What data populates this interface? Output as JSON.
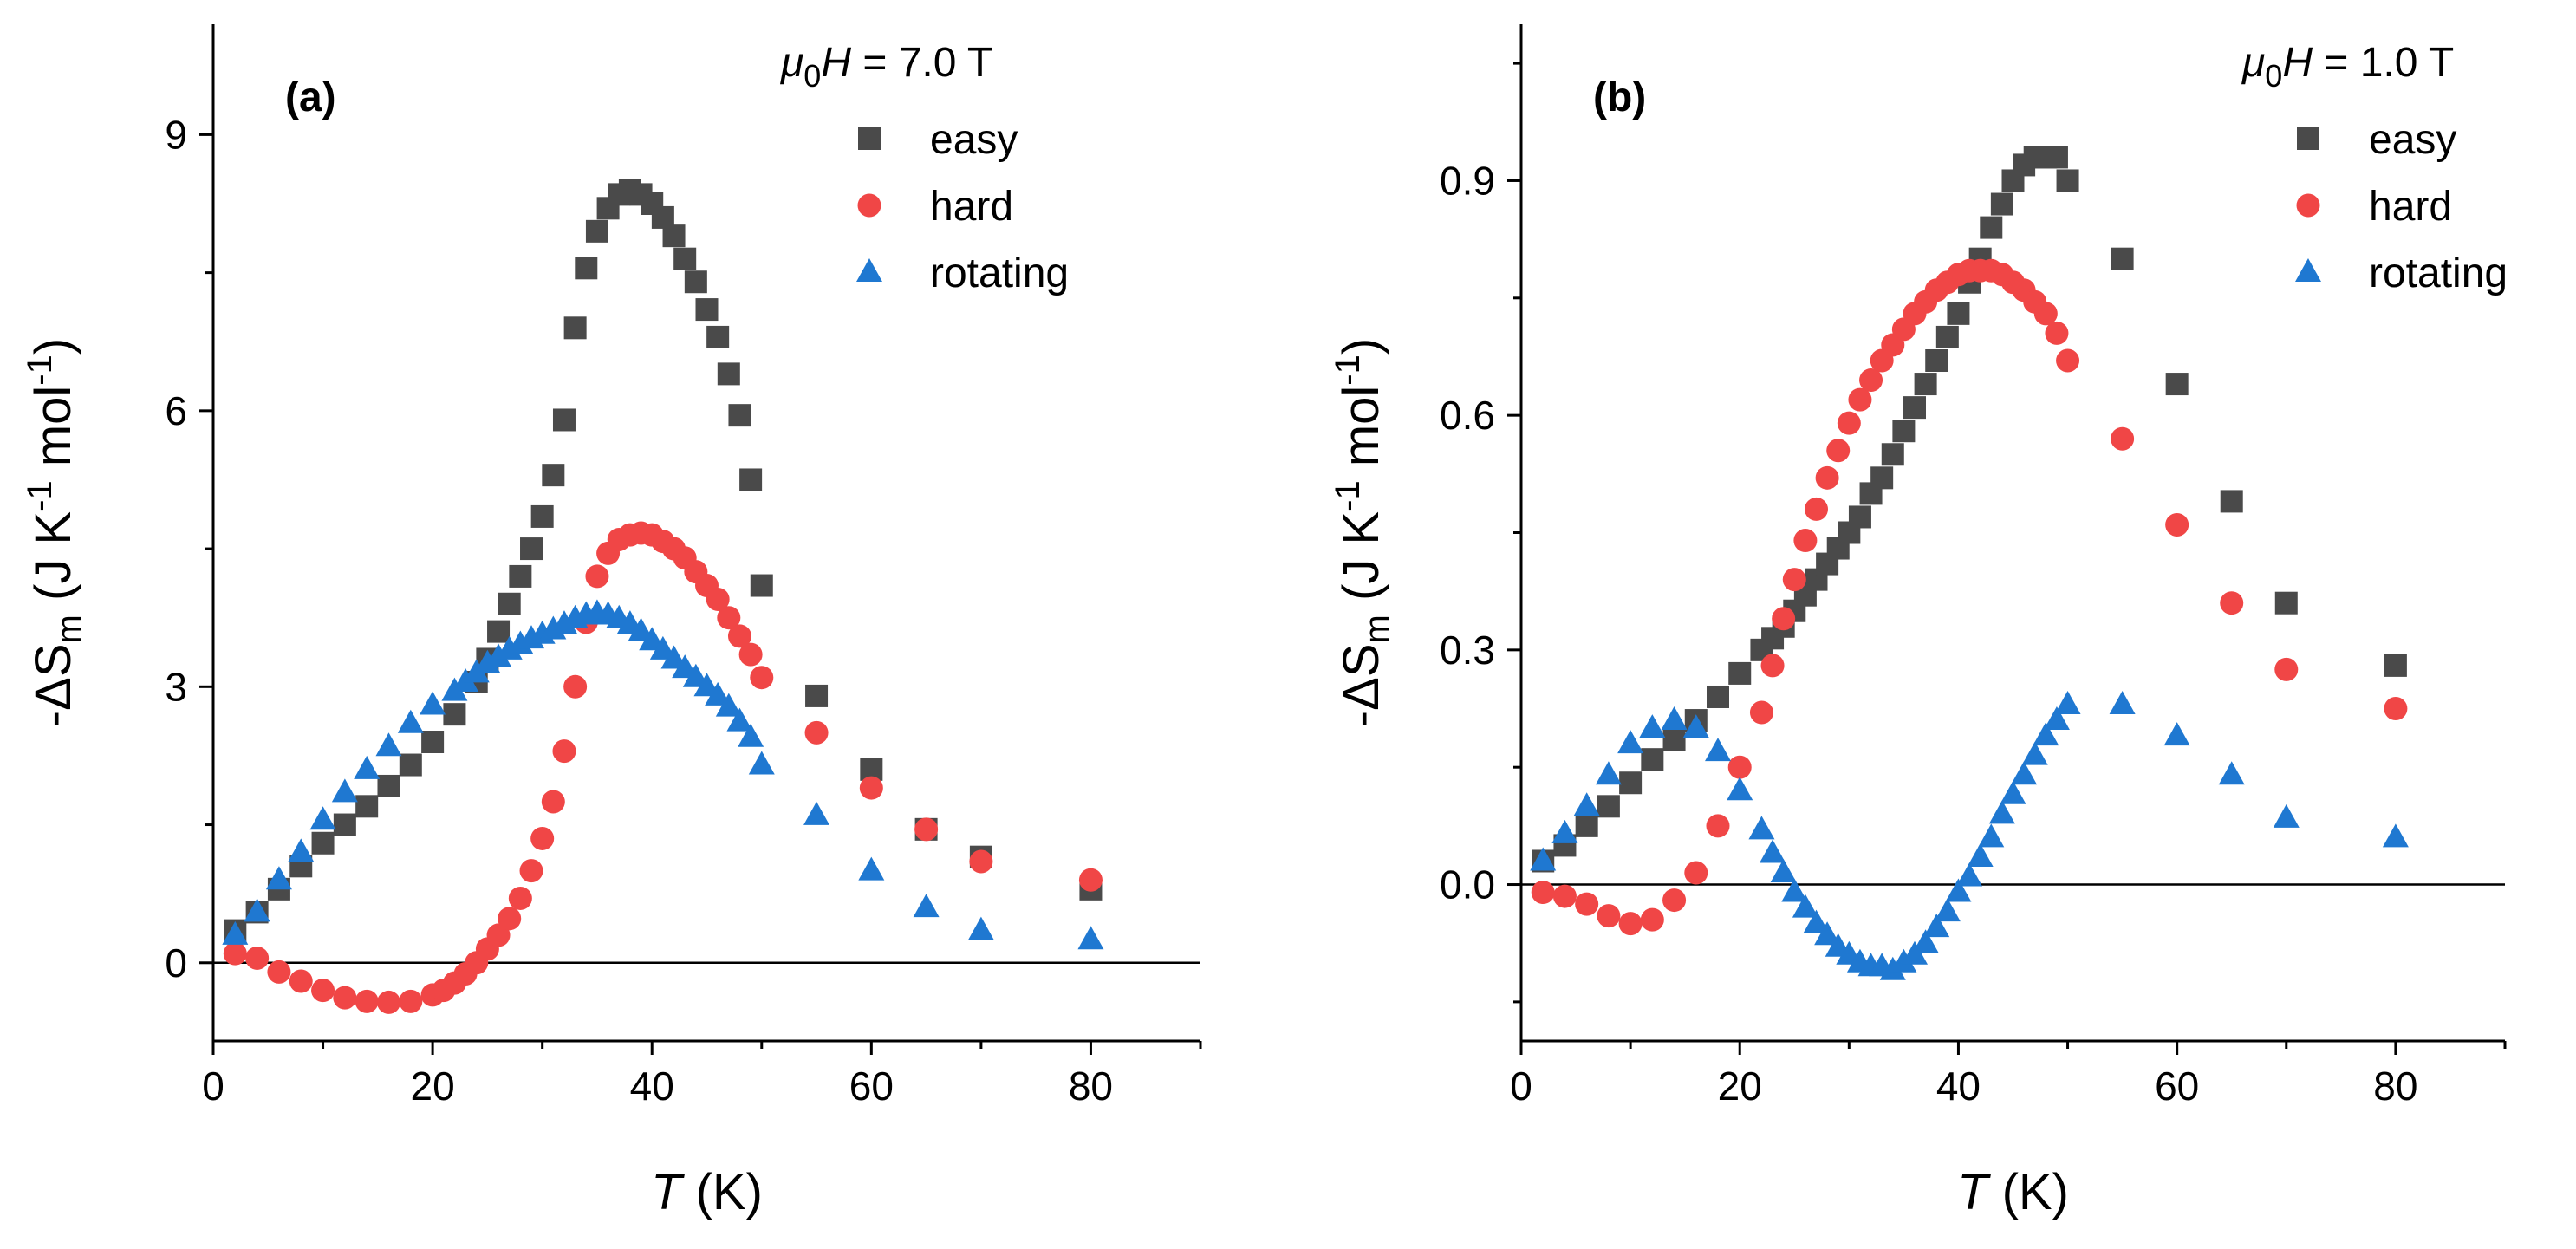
{
  "chart_data": [
    {
      "type": "scatter",
      "panel_label": "(a)",
      "field": {
        "symbol": "μ",
        "sub": "0",
        "var": "H",
        "rest": " = 7.0 T"
      },
      "xlabel": {
        "var": "T",
        "unit": " (K)"
      },
      "ylabel": {
        "pre": "-ΔS",
        "sub": "m",
        "mid1": " (J K",
        "sup1": "-1",
        "mid2": " mol",
        "sup2": "-1",
        "post": ")"
      },
      "xlim": [
        0,
        90
      ],
      "ylim": [
        -0.85,
        10.2
      ],
      "xticks": [
        0,
        20,
        40,
        60,
        80
      ],
      "xtick_labels": [
        "0",
        "20",
        "40",
        "60",
        "80"
      ],
      "yticks": [
        0,
        3,
        6,
        9
      ],
      "ytick_labels": [
        "0",
        "3",
        "6",
        "9"
      ],
      "zero_line": true,
      "series": [
        {
          "name": "easy",
          "marker": "square",
          "color": "#4a4a4a",
          "x": [
            2,
            4,
            6,
            8,
            10,
            12,
            14,
            16,
            18,
            20,
            22,
            24,
            25,
            26,
            27,
            28,
            29,
            30,
            31,
            32,
            33,
            34,
            35,
            36,
            37,
            38,
            39,
            40,
            41,
            42,
            43,
            44,
            45,
            46,
            47,
            48,
            49,
            50,
            55,
            60,
            65,
            70,
            80
          ],
          "y": [
            0.35,
            0.55,
            0.8,
            1.05,
            1.3,
            1.5,
            1.7,
            1.92,
            2.15,
            2.4,
            2.7,
            3.05,
            3.3,
            3.6,
            3.9,
            4.2,
            4.5,
            4.85,
            5.3,
            5.9,
            6.9,
            7.55,
            7.95,
            8.2,
            8.35,
            8.4,
            8.35,
            8.25,
            8.1,
            7.9,
            7.65,
            7.4,
            7.1,
            6.8,
            6.4,
            5.95,
            5.25,
            4.1,
            2.9,
            2.1,
            1.45,
            1.15,
            0.8
          ]
        },
        {
          "name": "hard",
          "marker": "circle",
          "color": "#f04646",
          "x": [
            2,
            4,
            6,
            8,
            10,
            12,
            14,
            16,
            18,
            20,
            21,
            22,
            23,
            24,
            25,
            26,
            27,
            28,
            29,
            30,
            31,
            32,
            33,
            34,
            35,
            36,
            37,
            38,
            39,
            40,
            41,
            42,
            43,
            44,
            45,
            46,
            47,
            48,
            49,
            50,
            55,
            60,
            65,
            70,
            80
          ],
          "y": [
            0.1,
            0.05,
            -0.1,
            -0.2,
            -0.3,
            -0.38,
            -0.42,
            -0.43,
            -0.42,
            -0.35,
            -0.3,
            -0.22,
            -0.12,
            0.0,
            0.15,
            0.3,
            0.48,
            0.7,
            1.0,
            1.35,
            1.75,
            2.3,
            3.0,
            3.7,
            4.2,
            4.45,
            4.6,
            4.65,
            4.67,
            4.65,
            4.58,
            4.5,
            4.4,
            4.25,
            4.1,
            3.95,
            3.75,
            3.55,
            3.35,
            3.1,
            2.5,
            1.9,
            1.45,
            1.1,
            0.9
          ]
        },
        {
          "name": "rotating",
          "marker": "triangle",
          "color": "#1f78d1",
          "x": [
            2,
            4,
            6,
            8,
            10,
            12,
            14,
            16,
            18,
            20,
            22,
            23,
            24,
            25,
            26,
            27,
            28,
            29,
            30,
            31,
            32,
            33,
            34,
            35,
            36,
            37,
            38,
            39,
            40,
            41,
            42,
            43,
            44,
            45,
            46,
            47,
            48,
            49,
            50,
            55,
            60,
            65,
            70,
            80
          ],
          "y": [
            0.3,
            0.55,
            0.9,
            1.2,
            1.55,
            1.85,
            2.1,
            2.35,
            2.6,
            2.8,
            2.95,
            3.05,
            3.15,
            3.25,
            3.32,
            3.4,
            3.46,
            3.52,
            3.57,
            3.62,
            3.68,
            3.74,
            3.78,
            3.8,
            3.78,
            3.74,
            3.68,
            3.6,
            3.5,
            3.4,
            3.3,
            3.2,
            3.1,
            3.0,
            2.9,
            2.78,
            2.62,
            2.45,
            2.15,
            1.6,
            1.0,
            0.6,
            0.35,
            0.25
          ]
        }
      ]
    },
    {
      "type": "scatter",
      "panel_label": "(b)",
      "field": {
        "symbol": "μ",
        "sub": "0",
        "var": "H",
        "rest": " = 1.0 T"
      },
      "xlabel": {
        "var": "T",
        "unit": " (K)"
      },
      "ylabel": {
        "pre": "-ΔS",
        "sub": "m",
        "mid1": " (J K",
        "sup1": "-1",
        "mid2": " mol",
        "sup2": "-1",
        "post": ")"
      },
      "xlim": [
        0,
        90
      ],
      "ylim": [
        -0.2,
        1.1
      ],
      "xticks": [
        0,
        20,
        40,
        60,
        80
      ],
      "xtick_labels": [
        "0",
        "20",
        "40",
        "60",
        "80"
      ],
      "yticks": [
        0,
        0.3,
        0.6,
        0.9
      ],
      "ytick_labels": [
        "0.0",
        "0.3",
        "0.6",
        "0.9"
      ],
      "zero_line": true,
      "series": [
        {
          "name": "easy",
          "marker": "square",
          "color": "#4a4a4a",
          "x": [
            2,
            4,
            6,
            8,
            10,
            12,
            14,
            16,
            18,
            20,
            22,
            23,
            24,
            25,
            26,
            27,
            28,
            29,
            30,
            31,
            32,
            33,
            34,
            35,
            36,
            37,
            38,
            39,
            40,
            41,
            42,
            43,
            44,
            45,
            46,
            47,
            48,
            49,
            50,
            55,
            60,
            65,
            70,
            80
          ],
          "y": [
            0.03,
            0.05,
            0.075,
            0.1,
            0.13,
            0.16,
            0.185,
            0.21,
            0.24,
            0.27,
            0.3,
            0.315,
            0.33,
            0.35,
            0.37,
            0.39,
            0.41,
            0.43,
            0.45,
            0.47,
            0.5,
            0.52,
            0.55,
            0.58,
            0.61,
            0.64,
            0.67,
            0.7,
            0.73,
            0.77,
            0.8,
            0.84,
            0.87,
            0.9,
            0.92,
            0.93,
            0.93,
            0.93,
            0.9,
            0.8,
            0.64,
            0.49,
            0.36,
            0.28
          ]
        },
        {
          "name": "hard",
          "marker": "circle",
          "color": "#f04646",
          "x": [
            2,
            4,
            6,
            8,
            10,
            12,
            14,
            16,
            18,
            20,
            22,
            23,
            24,
            25,
            26,
            27,
            28,
            29,
            30,
            31,
            32,
            33,
            34,
            35,
            36,
            37,
            38,
            39,
            40,
            41,
            42,
            43,
            44,
            45,
            46,
            47,
            48,
            49,
            50,
            55,
            60,
            65,
            70,
            80
          ],
          "y": [
            -0.01,
            -0.015,
            -0.025,
            -0.04,
            -0.05,
            -0.045,
            -0.02,
            0.015,
            0.075,
            0.15,
            0.22,
            0.28,
            0.34,
            0.39,
            0.44,
            0.48,
            0.52,
            0.555,
            0.59,
            0.62,
            0.645,
            0.67,
            0.69,
            0.71,
            0.73,
            0.745,
            0.76,
            0.77,
            0.78,
            0.785,
            0.785,
            0.785,
            0.78,
            0.77,
            0.76,
            0.745,
            0.73,
            0.705,
            0.67,
            0.57,
            0.46,
            0.36,
            0.275,
            0.225
          ]
        },
        {
          "name": "rotating",
          "marker": "triangle",
          "color": "#1f78d1",
          "x": [
            2,
            4,
            6,
            8,
            10,
            12,
            14,
            16,
            18,
            20,
            22,
            23,
            24,
            25,
            26,
            27,
            28,
            29,
            30,
            31,
            32,
            33,
            34,
            35,
            36,
            37,
            38,
            39,
            40,
            41,
            42,
            43,
            44,
            45,
            46,
            47,
            48,
            49,
            50,
            55,
            60,
            65,
            70,
            80
          ],
          "y": [
            0.03,
            0.065,
            0.1,
            0.14,
            0.18,
            0.2,
            0.21,
            0.2,
            0.17,
            0.12,
            0.07,
            0.04,
            0.015,
            -0.01,
            -0.03,
            -0.05,
            -0.065,
            -0.08,
            -0.09,
            -0.1,
            -0.105,
            -0.105,
            -0.11,
            -0.1,
            -0.09,
            -0.075,
            -0.055,
            -0.035,
            -0.01,
            0.01,
            0.035,
            0.06,
            0.09,
            0.115,
            0.14,
            0.165,
            0.19,
            0.21,
            0.23,
            0.23,
            0.19,
            0.14,
            0.085,
            0.06
          ]
        }
      ]
    }
  ]
}
